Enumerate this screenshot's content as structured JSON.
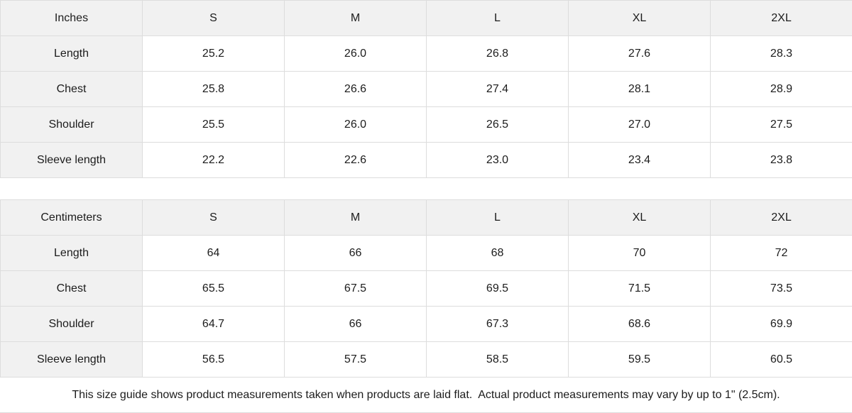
{
  "tables": [
    {
      "id": "inches",
      "unit_label": "Inches",
      "sizes": [
        "S",
        "M",
        "L",
        "XL",
        "2XL"
      ],
      "rows": [
        {
          "label": "Length",
          "values": [
            "25.2",
            "26.0",
            "26.8",
            "27.6",
            "28.3"
          ]
        },
        {
          "label": "Chest",
          "values": [
            "25.8",
            "26.6",
            "27.4",
            "28.1",
            "28.9"
          ]
        },
        {
          "label": "Shoulder",
          "values": [
            "25.5",
            "26.0",
            "26.5",
            "27.0",
            "27.5"
          ]
        },
        {
          "label": "Sleeve length",
          "values": [
            "22.2",
            "22.6",
            "23.0",
            "23.4",
            "23.8"
          ]
        }
      ]
    },
    {
      "id": "centimeters",
      "unit_label": "Centimeters",
      "sizes": [
        "S",
        "M",
        "L",
        "XL",
        "2XL"
      ],
      "rows": [
        {
          "label": "Length",
          "values": [
            "64",
            "66",
            "68",
            "70",
            "72"
          ]
        },
        {
          "label": "Chest",
          "values": [
            "65.5",
            "67.5",
            "69.5",
            "71.5",
            "73.5"
          ]
        },
        {
          "label": "Shoulder",
          "values": [
            "64.7",
            "66",
            "67.3",
            "68.6",
            "69.9"
          ]
        },
        {
          "label": "Sleeve length",
          "values": [
            "56.5",
            "57.5",
            "58.5",
            "59.5",
            "60.5"
          ]
        }
      ]
    }
  ],
  "footer": {
    "note": "This size guide shows product measurements taken when products are laid flat.  Actual product measurements may vary by up to 1\" (2.5cm)."
  },
  "colors": {
    "header_bg": "#f1f1f1",
    "border": "#dddddd",
    "text": "#1c1c1c",
    "background": "#ffffff"
  }
}
